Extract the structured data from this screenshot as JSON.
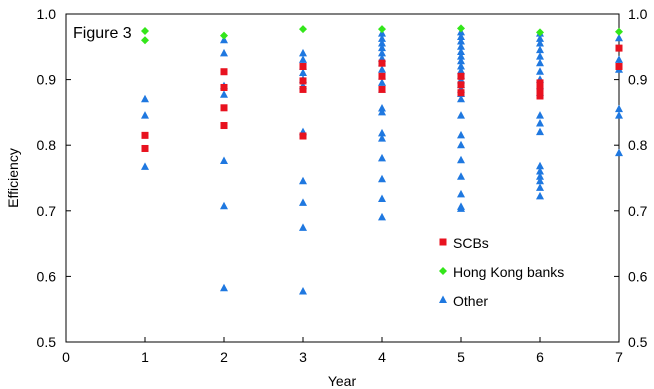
{
  "chart_data": {
    "type": "scatter",
    "title": "Figure 3",
    "xlabel": "Year",
    "ylabel": "Efficiency",
    "xlim": [
      0,
      7
    ],
    "ylim": [
      0.5,
      1.0
    ],
    "x_ticks": [
      "0",
      "1",
      "2",
      "3",
      "4",
      "5",
      "6",
      "7"
    ],
    "y_ticks": [
      "0.5",
      "0.6",
      "0.7",
      "0.8",
      "0.9",
      "1.0"
    ],
    "y_ticks_right": [
      "0.5",
      "0.6",
      "0.7",
      "0.8",
      "0.9",
      "1.0"
    ],
    "grid": false,
    "legend_position": "bottom-center",
    "series": [
      {
        "name": "SCBs",
        "marker": "square",
        "color": "#e8121f",
        "points": [
          [
            1,
            0.815
          ],
          [
            1,
            0.795
          ],
          [
            2,
            0.912
          ],
          [
            2,
            0.888
          ],
          [
            2,
            0.857
          ],
          [
            2,
            0.83
          ],
          [
            3,
            0.92
          ],
          [
            3,
            0.898
          ],
          [
            3,
            0.885
          ],
          [
            3,
            0.814
          ],
          [
            4,
            0.925
          ],
          [
            4,
            0.905
          ],
          [
            4,
            0.885
          ],
          [
            5,
            0.905
          ],
          [
            5,
            0.892
          ],
          [
            5,
            0.88
          ],
          [
            6,
            0.895
          ],
          [
            6,
            0.885
          ],
          [
            6,
            0.875
          ],
          [
            7,
            0.948
          ],
          [
            7,
            0.92
          ]
        ]
      },
      {
        "name": "Hong Kong banks",
        "marker": "diamond",
        "color": "#33e61a",
        "points": [
          [
            1,
            0.974
          ],
          [
            1,
            0.96
          ],
          [
            2,
            0.967
          ],
          [
            3,
            0.977
          ],
          [
            4,
            0.977
          ],
          [
            5,
            0.978
          ],
          [
            6,
            0.972
          ],
          [
            7,
            0.973
          ]
        ]
      },
      {
        "name": "Other",
        "marker": "triangle",
        "color": "#1f78e0",
        "points": [
          [
            1,
            0.87
          ],
          [
            1,
            0.845
          ],
          [
            1,
            0.767
          ],
          [
            2,
            0.96
          ],
          [
            2,
            0.94
          ],
          [
            2,
            0.89
          ],
          [
            2,
            0.877
          ],
          [
            2,
            0.776
          ],
          [
            2,
            0.707
          ],
          [
            2,
            0.582
          ],
          [
            3,
            0.94
          ],
          [
            3,
            0.93
          ],
          [
            3,
            0.92
          ],
          [
            3,
            0.91
          ],
          [
            3,
            0.9
          ],
          [
            3,
            0.89
          ],
          [
            3,
            0.82
          ],
          [
            3,
            0.745
          ],
          [
            3,
            0.712
          ],
          [
            3,
            0.674
          ],
          [
            3,
            0.577
          ],
          [
            4,
            0.97
          ],
          [
            4,
            0.962
          ],
          [
            4,
            0.955
          ],
          [
            4,
            0.948
          ],
          [
            4,
            0.94
          ],
          [
            4,
            0.932
          ],
          [
            4,
            0.925
          ],
          [
            4,
            0.915
          ],
          [
            4,
            0.905
          ],
          [
            4,
            0.895
          ],
          [
            4,
            0.885
          ],
          [
            4,
            0.856
          ],
          [
            4,
            0.85
          ],
          [
            4,
            0.818
          ],
          [
            4,
            0.81
          ],
          [
            4,
            0.78
          ],
          [
            4,
            0.748
          ],
          [
            4,
            0.718
          ],
          [
            4,
            0.69
          ],
          [
            5,
            0.972
          ],
          [
            5,
            0.965
          ],
          [
            5,
            0.958
          ],
          [
            5,
            0.95
          ],
          [
            5,
            0.942
          ],
          [
            5,
            0.935
          ],
          [
            5,
            0.928
          ],
          [
            5,
            0.92
          ],
          [
            5,
            0.913
          ],
          [
            5,
            0.906
          ],
          [
            5,
            0.899
          ],
          [
            5,
            0.892
          ],
          [
            5,
            0.885
          ],
          [
            5,
            0.878
          ],
          [
            5,
            0.87
          ],
          [
            5,
            0.845
          ],
          [
            5,
            0.815
          ],
          [
            5,
            0.8
          ],
          [
            5,
            0.777
          ],
          [
            5,
            0.752
          ],
          [
            5,
            0.725
          ],
          [
            5,
            0.706
          ],
          [
            5,
            0.703
          ],
          [
            6,
            0.97
          ],
          [
            6,
            0.962
          ],
          [
            6,
            0.955
          ],
          [
            6,
            0.945
          ],
          [
            6,
            0.935
          ],
          [
            6,
            0.925
          ],
          [
            6,
            0.912
          ],
          [
            6,
            0.9
          ],
          [
            6,
            0.89
          ],
          [
            6,
            0.88
          ],
          [
            6,
            0.845
          ],
          [
            6,
            0.833
          ],
          [
            6,
            0.82
          ],
          [
            6,
            0.768
          ],
          [
            6,
            0.76
          ],
          [
            6,
            0.752
          ],
          [
            6,
            0.745
          ],
          [
            6,
            0.735
          ],
          [
            6,
            0.722
          ],
          [
            7,
            0.963
          ],
          [
            7,
            0.93
          ],
          [
            7,
            0.915
          ],
          [
            7,
            0.855
          ],
          [
            7,
            0.845
          ],
          [
            7,
            0.788
          ]
        ]
      }
    ]
  }
}
